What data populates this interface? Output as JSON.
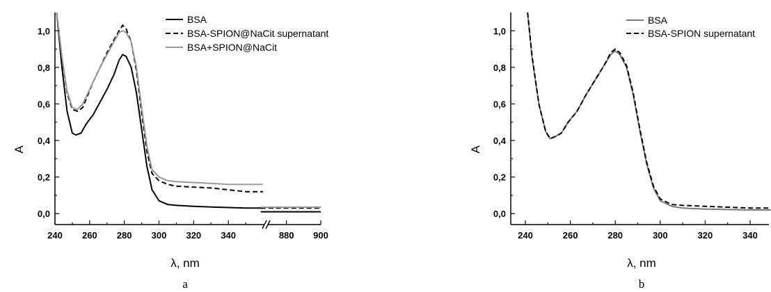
{
  "chart_data": [
    {
      "type": "line",
      "caption": "a",
      "xlabel": "λ, nm",
      "ylabel": "A",
      "xlim": [
        240,
        900
      ],
      "axis_break": {
        "from": 360,
        "to": 870
      },
      "ylim": [
        -0.06,
        1.1
      ],
      "xticks": [
        "240",
        "260",
        "280",
        "300",
        "320",
        "340",
        "880",
        "900"
      ],
      "yticks": [
        "0,0",
        "0,2",
        "0,4",
        "0,6",
        "0,8",
        "1,0"
      ],
      "legend_position": "top-right",
      "series": [
        {
          "name": "BSA",
          "color": "#000000",
          "dash": "solid",
          "x": [
            241,
            244,
            247,
            250,
            252,
            255,
            258,
            262,
            266,
            270,
            274,
            277,
            279,
            281,
            284,
            287,
            290,
            293,
            296,
            300,
            305,
            310,
            320,
            330,
            340,
            350,
            360,
            865,
            900
          ],
          "y": [
            1.1,
            0.8,
            0.56,
            0.44,
            0.43,
            0.44,
            0.49,
            0.54,
            0.61,
            0.68,
            0.76,
            0.84,
            0.87,
            0.86,
            0.8,
            0.66,
            0.46,
            0.26,
            0.13,
            0.07,
            0.05,
            0.045,
            0.04,
            0.036,
            0.033,
            0.03,
            0.03,
            0.01,
            0.01
          ]
        },
        {
          "name": "BSA-SPION@NaCit supernatant",
          "color": "#000000",
          "dash": "dashed",
          "x": [
            241,
            244,
            247,
            250,
            253,
            256,
            259,
            262,
            266,
            270,
            274,
            277,
            279,
            281,
            284,
            287,
            290,
            293,
            296,
            300,
            305,
            310,
            320,
            330,
            340,
            350,
            360,
            865,
            900
          ],
          "y": [
            1.1,
            0.85,
            0.66,
            0.57,
            0.56,
            0.58,
            0.65,
            0.72,
            0.8,
            0.88,
            0.95,
            1.0,
            1.03,
            1.01,
            0.94,
            0.78,
            0.55,
            0.34,
            0.22,
            0.18,
            0.16,
            0.15,
            0.145,
            0.14,
            0.13,
            0.12,
            0.12,
            0.03,
            0.03
          ]
        },
        {
          "name": "BSA+SPION@NaCit",
          "color": "#9a9a9a",
          "dash": "solid",
          "x": [
            241,
            244,
            247,
            250,
            253,
            256,
            259,
            262,
            266,
            270,
            274,
            277,
            279,
            281,
            284,
            287,
            290,
            293,
            296,
            300,
            305,
            310,
            320,
            330,
            340,
            350,
            360,
            865,
            900
          ],
          "y": [
            1.1,
            0.86,
            0.67,
            0.58,
            0.57,
            0.6,
            0.66,
            0.72,
            0.8,
            0.87,
            0.94,
            0.99,
            1.0,
            0.99,
            0.94,
            0.8,
            0.58,
            0.37,
            0.24,
            0.2,
            0.18,
            0.175,
            0.17,
            0.165,
            0.16,
            0.16,
            0.16,
            0.035,
            0.035
          ]
        }
      ]
    },
    {
      "type": "line",
      "caption": "b",
      "xlabel": "λ, nm",
      "ylabel": "A",
      "xlim": [
        235,
        350
      ],
      "ylim": [
        -0.06,
        1.1
      ],
      "xticks": [
        "240",
        "260",
        "280",
        "300",
        "320",
        "340"
      ],
      "yticks": [
        "0,0",
        "0,2",
        "0,4",
        "0,6",
        "0,8",
        "1,0"
      ],
      "legend_position": "top-right",
      "series": [
        {
          "name": "BSA",
          "color": "#7a7a7a",
          "dash": "solid",
          "x": [
            241,
            243,
            246,
            249,
            251,
            253,
            256,
            259,
            263,
            267,
            271,
            275,
            278,
            280,
            282,
            285,
            288,
            291,
            294,
            297,
            300,
            305,
            310,
            320,
            330,
            340,
            350
          ],
          "y": [
            1.1,
            0.85,
            0.6,
            0.45,
            0.41,
            0.42,
            0.44,
            0.5,
            0.56,
            0.65,
            0.73,
            0.81,
            0.87,
            0.89,
            0.87,
            0.8,
            0.65,
            0.45,
            0.27,
            0.14,
            0.07,
            0.04,
            0.03,
            0.025,
            0.022,
            0.02,
            0.02
          ]
        },
        {
          "name": "BSA-SPION supernatant",
          "color": "#000000",
          "dash": "dashed",
          "x": [
            241,
            243,
            246,
            249,
            251,
            253,
            256,
            259,
            263,
            267,
            271,
            275,
            278,
            280,
            282,
            285,
            288,
            291,
            294,
            297,
            300,
            305,
            310,
            320,
            330,
            340,
            350
          ],
          "y": [
            1.1,
            0.86,
            0.6,
            0.45,
            0.41,
            0.42,
            0.44,
            0.5,
            0.56,
            0.65,
            0.73,
            0.81,
            0.88,
            0.9,
            0.88,
            0.81,
            0.66,
            0.46,
            0.28,
            0.15,
            0.08,
            0.05,
            0.045,
            0.04,
            0.035,
            0.03,
            0.03
          ]
        }
      ]
    }
  ]
}
